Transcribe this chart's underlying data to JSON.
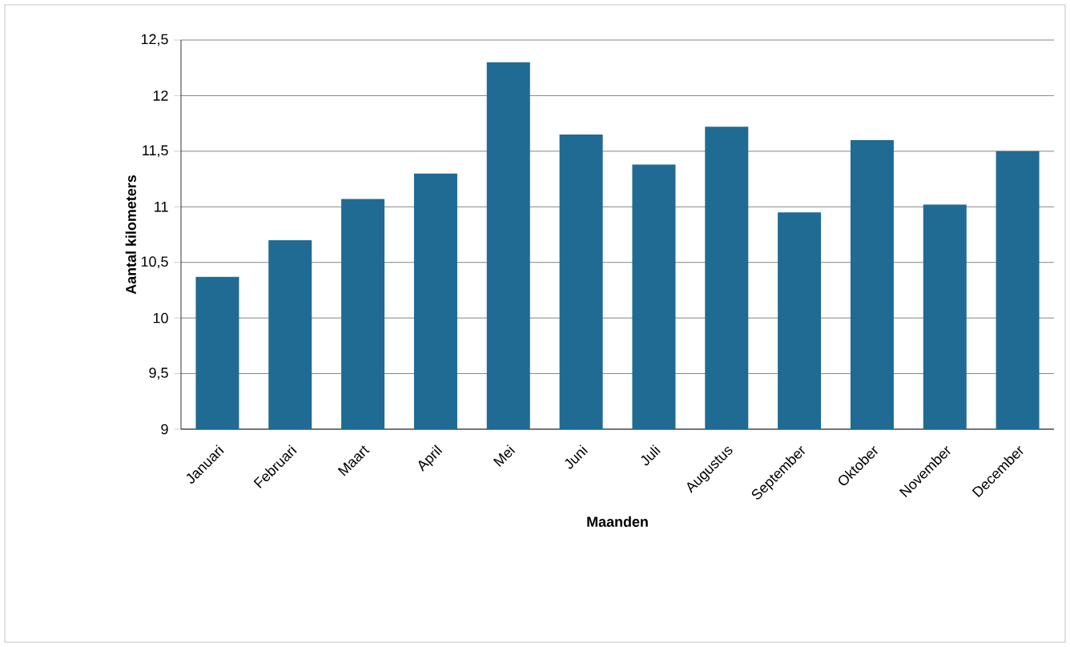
{
  "chart_data": {
    "type": "bar",
    "xlabel": "**Maanden**",
    "ylabel": "**Aantal kilometers**",
    "categories": [
      "Januari",
      "Februari",
      "Maart",
      "April",
      "Mei",
      "Juni",
      "Juli",
      "Augustus",
      "September",
      "Oktober",
      "November",
      "December"
    ],
    "values": [
      10.37,
      10.7,
      11.07,
      11.3,
      12.3,
      11.65,
      11.38,
      11.72,
      10.95,
      11.6,
      11.02,
      11.5
    ],
    "color": "#1f6b93",
    "ylim": [
      9,
      12.5
    ],
    "yticks": [
      9,
      {
        "value": 9.5,
        "label": "9,5"
      },
      10,
      {
        "value": 10.5,
        "label": "10,5"
      },
      11,
      {
        "value": 11.5,
        "label": "11,5"
      },
      12,
      {
        "value": 12.5,
        "label": "12,5"
      }
    ],
    "grid": "y"
  }
}
